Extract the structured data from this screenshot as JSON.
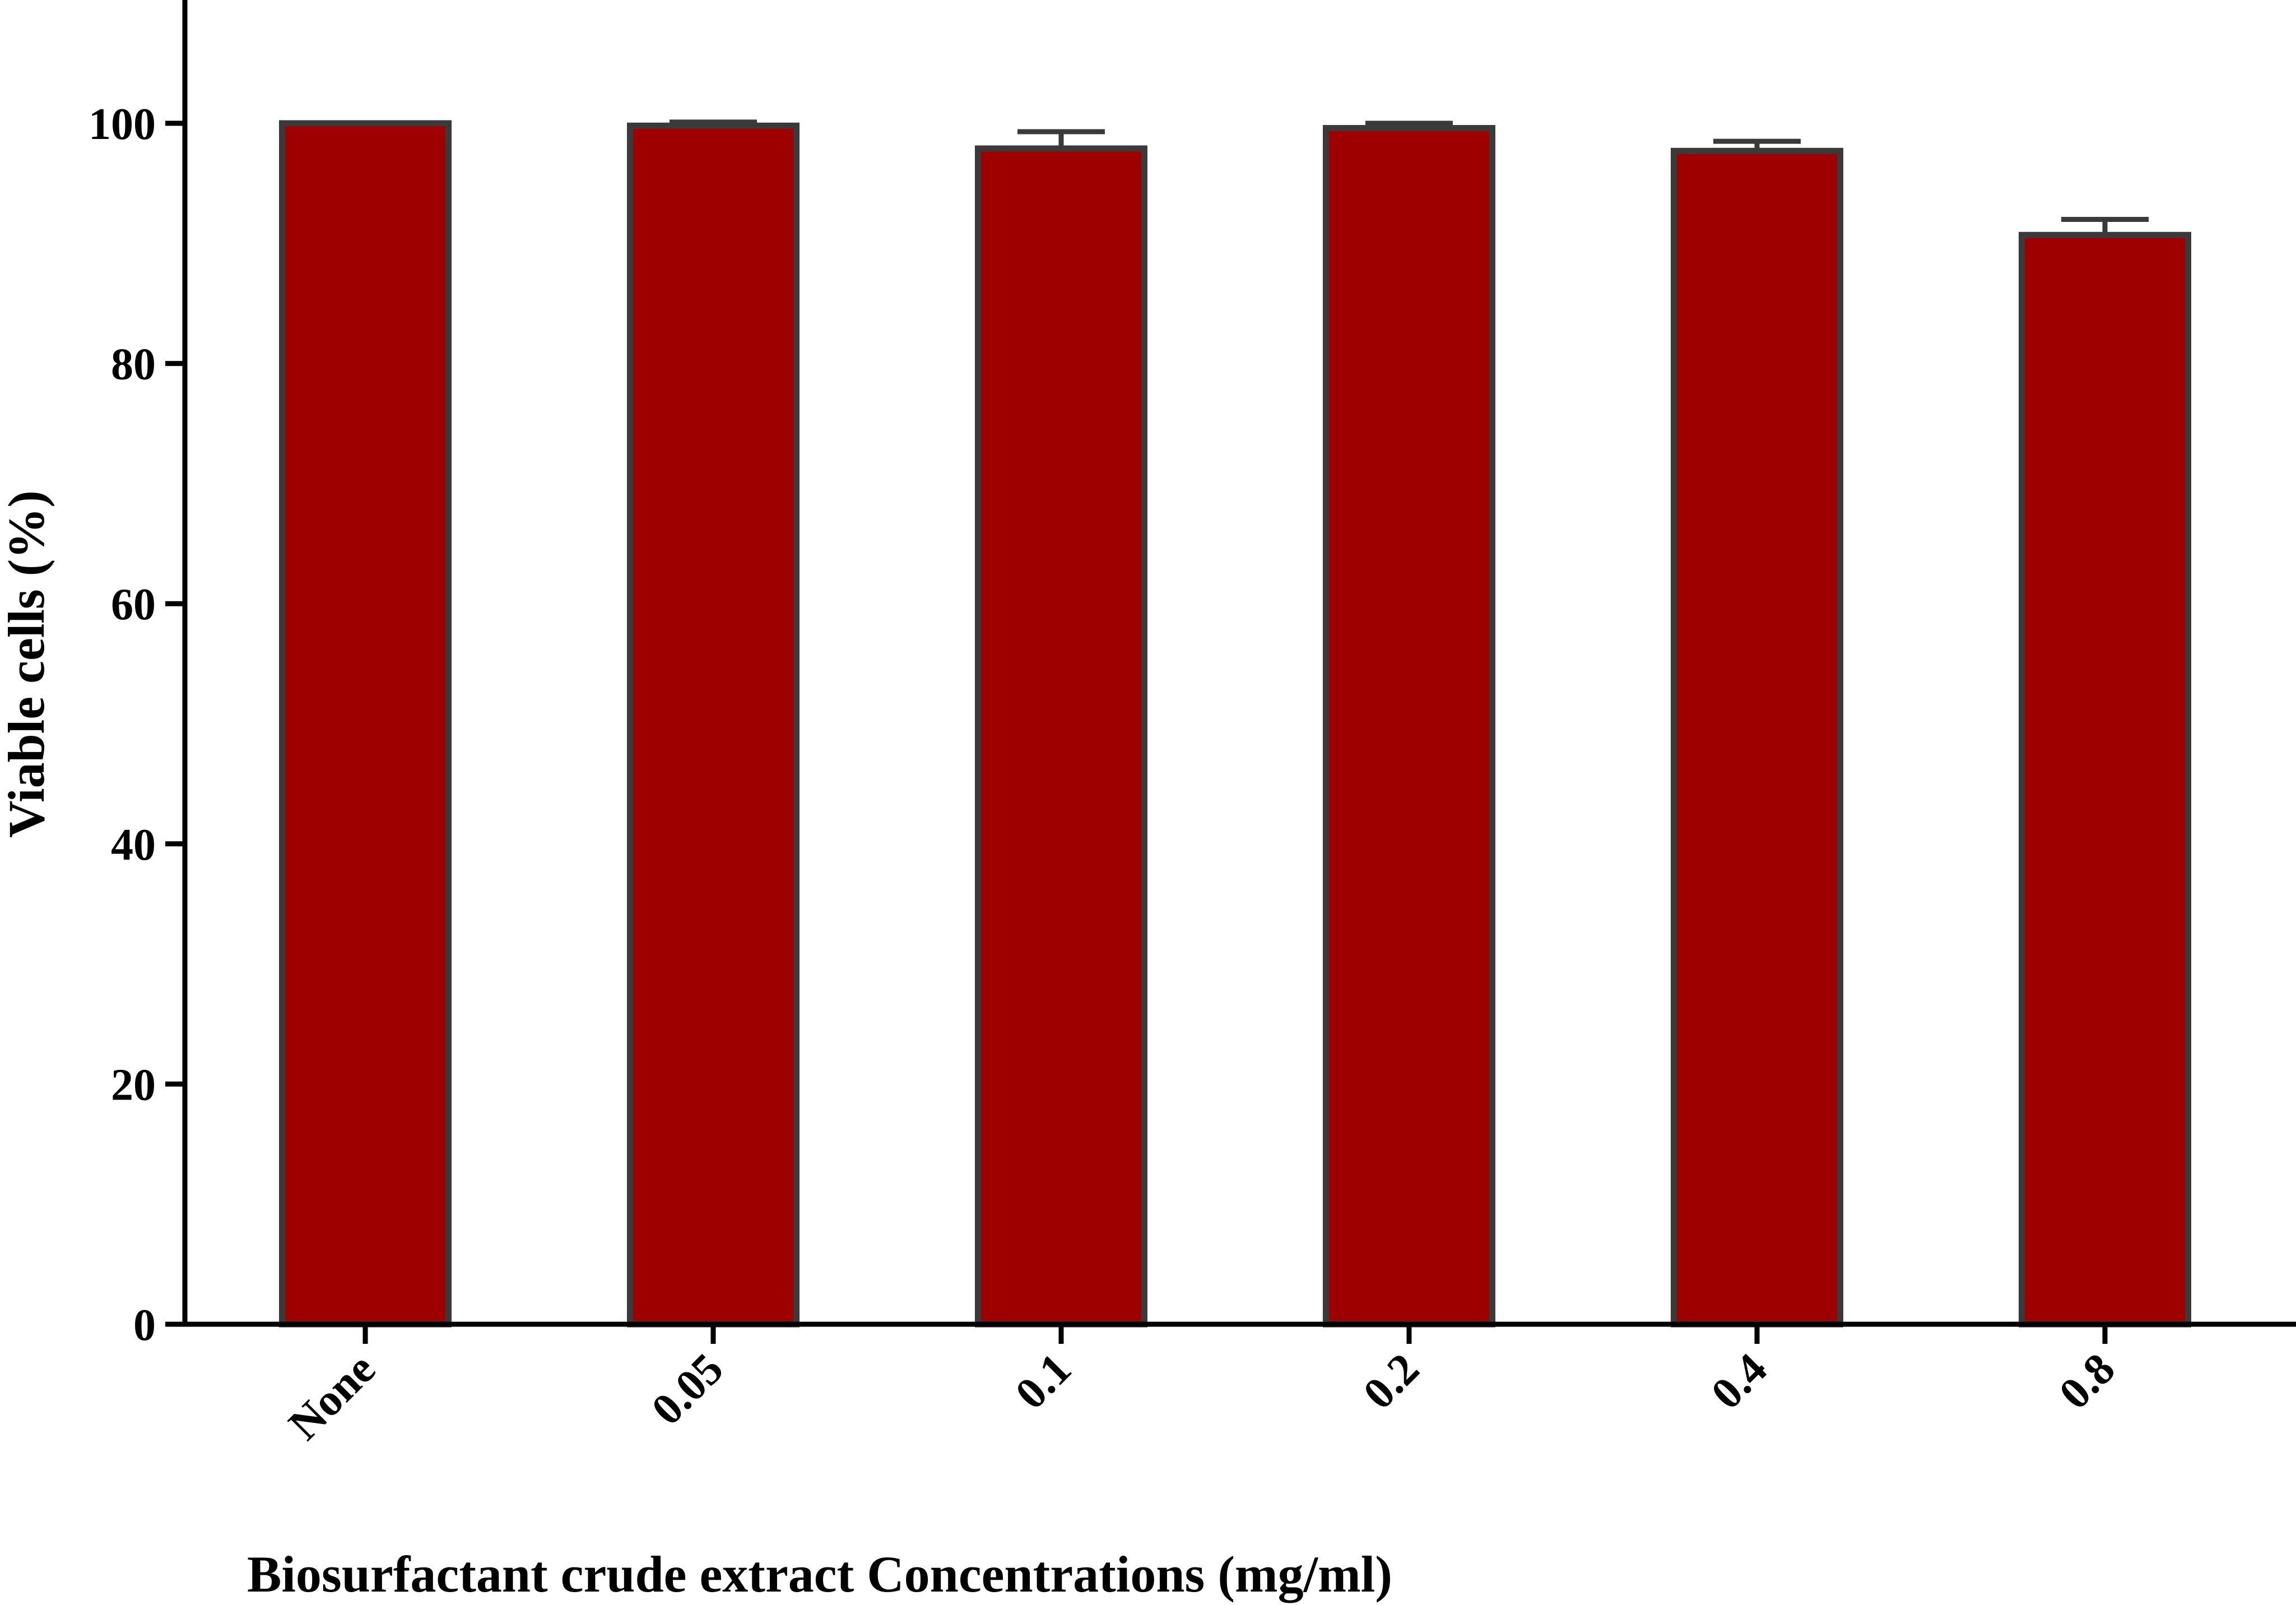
{
  "chart_data": {
    "type": "bar",
    "title": "",
    "xlabel": "Biosurfactant crude extract Concentrations (mg/ml)",
    "ylabel": "Viable cells (%)",
    "categories": [
      "None",
      "0.05",
      "0.1",
      "0.2",
      "0.4",
      "0.8"
    ],
    "values": [
      100,
      99.8,
      97.9,
      99.6,
      97.7,
      90.7
    ],
    "error_bars": [
      0,
      0.3,
      1.4,
      0.4,
      0.8,
      1.3
    ],
    "ylim": [
      0,
      110
    ],
    "yticks": [
      0,
      20,
      40,
      60,
      80,
      100
    ],
    "grid": false,
    "legend": "none",
    "colors": {
      "bar_fill": "#9e0000",
      "bar_edge": "#3a3a3a",
      "axis": "#000000"
    }
  }
}
